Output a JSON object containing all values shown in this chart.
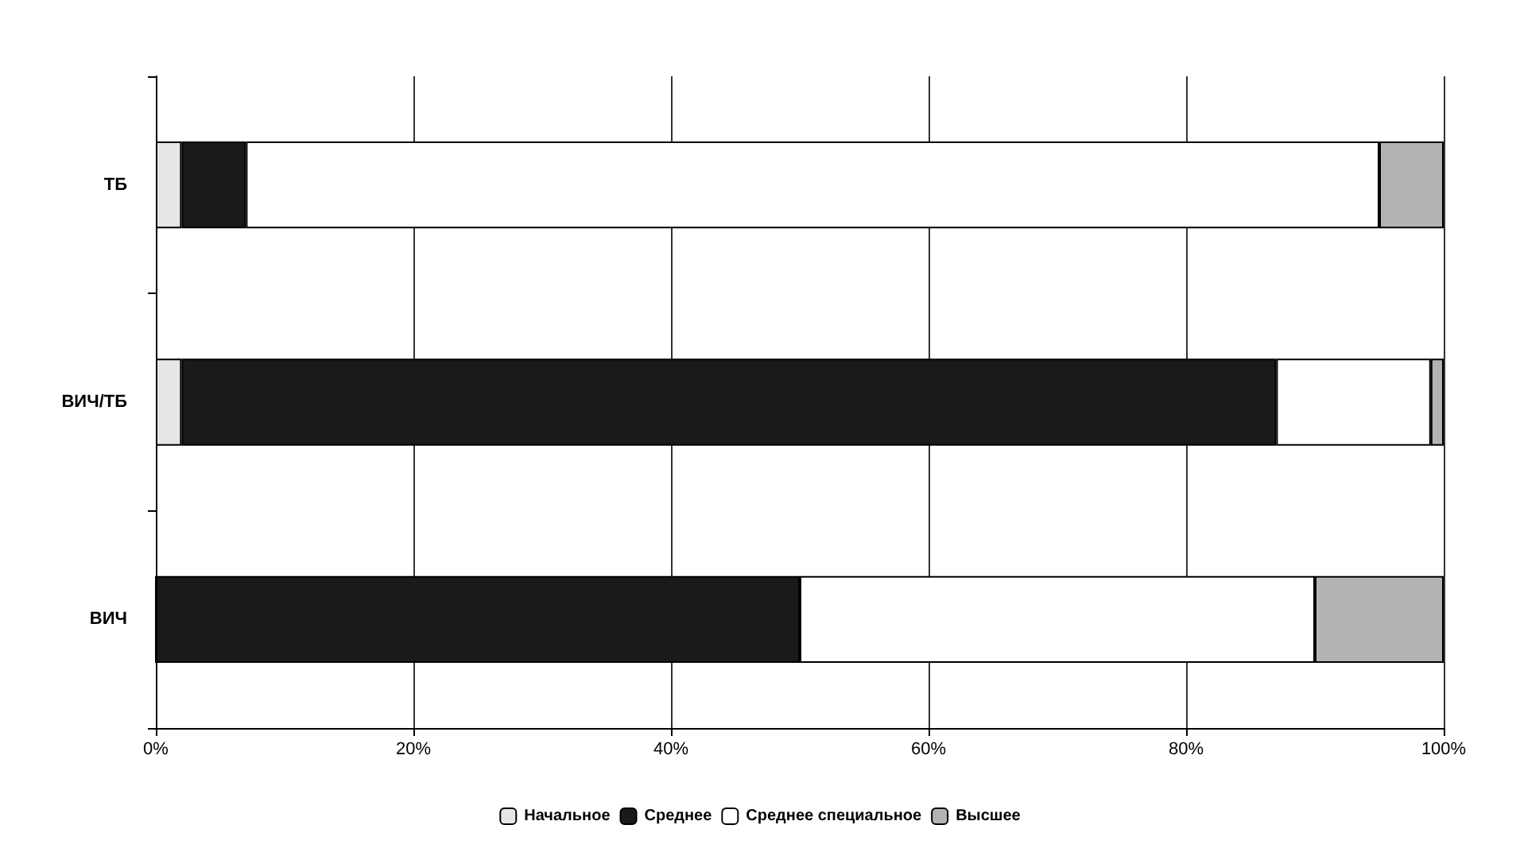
{
  "chart_data": {
    "type": "bar",
    "orientation": "horizontal",
    "stacked": true,
    "categories": [
      "ТБ",
      "ВИЧ/ТБ",
      "ВИЧ"
    ],
    "series": [
      {
        "name": "Начальное",
        "color": "#e6e6e6",
        "values": [
          2,
          2,
          0
        ]
      },
      {
        "name": "Среднее",
        "color": "#1a1a1a",
        "values": [
          5,
          85,
          50
        ]
      },
      {
        "name": "Среднее специальное",
        "color": "#ffffff",
        "values": [
          88,
          12,
          40
        ]
      },
      {
        "name": "Высшее",
        "color": "#b3b3b3",
        "values": [
          5,
          1,
          10
        ]
      }
    ],
    "xlim": [
      0,
      100
    ],
    "xticks": [
      {
        "value": 0,
        "label": "0%"
      },
      {
        "value": 20,
        "label": "20%"
      },
      {
        "value": 40,
        "label": "40%"
      },
      {
        "value": 60,
        "label": "60%"
      },
      {
        "value": 80,
        "label": "80%"
      },
      {
        "value": 100,
        "label": "100%"
      }
    ],
    "grid": "x",
    "legend": "bottom"
  }
}
